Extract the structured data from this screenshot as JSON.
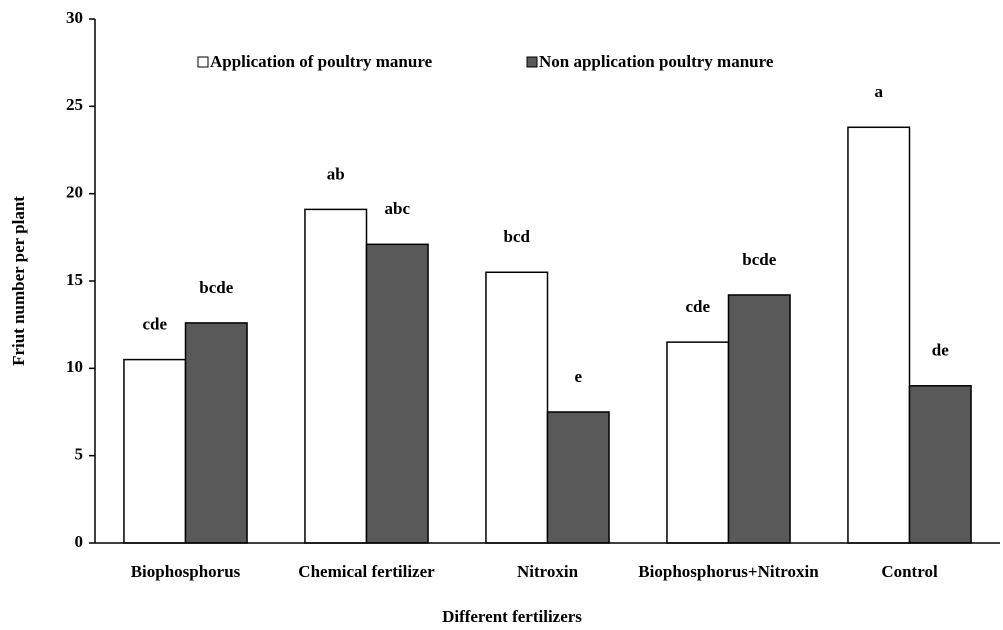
{
  "chart_data": {
    "type": "bar",
    "x_label": "Different fertilizers",
    "y_label": "Friut number  per plant",
    "categories": [
      "Biophosphorus",
      "Chemical fertilizer",
      "Nitroxin",
      "Biophosphorus+Nitroxin",
      "Control"
    ],
    "series": [
      {
        "name": "Application of poultry manure",
        "color": "#ffffff",
        "values": [
          10.5,
          19.1,
          15.5,
          11.5,
          23.8
        ],
        "annotations": [
          "cde",
          "ab",
          "bcd",
          "cde",
          "a"
        ]
      },
      {
        "name": "Non application poultry manure",
        "color": "#595959",
        "values": [
          12.6,
          17.1,
          7.5,
          14.2,
          9.0
        ],
        "annotations": [
          "bcde",
          "abc",
          "e",
          "bcde",
          "de"
        ]
      }
    ],
    "ylim": [
      0,
      30
    ],
    "yticks": [
      0,
      5,
      10,
      15,
      20,
      25,
      30
    ],
    "grid": false,
    "legend": "top"
  }
}
